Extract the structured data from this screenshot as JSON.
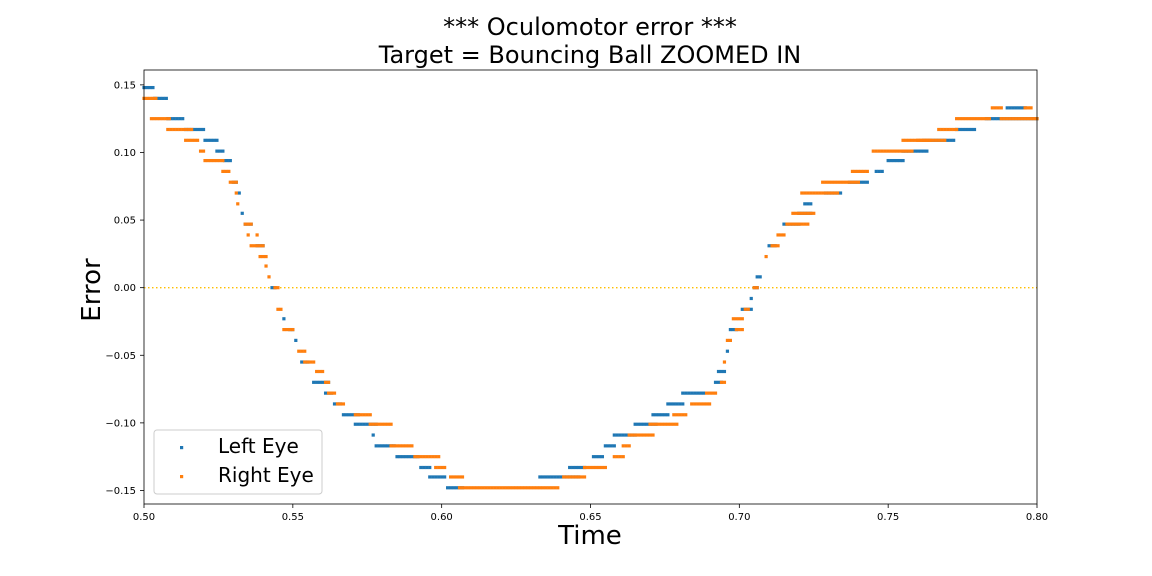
{
  "chart_data": {
    "type": "scatter",
    "title": "*** Oculomotor error ***",
    "subtitle": "Target = Bouncing Ball ZOOMED IN",
    "xlabel": "Time",
    "ylabel": "Error",
    "xlim": [
      0.5,
      0.8
    ],
    "ylim": [
      -0.16,
      0.161
    ],
    "xticks": [
      "0.50",
      "0.55",
      "0.60",
      "0.65",
      "0.70",
      "0.75",
      "0.80"
    ],
    "yticks": [
      "0.15",
      "0.10",
      "0.05",
      "0.00",
      "−0.05",
      "−0.10",
      "−0.15"
    ],
    "reference_line": {
      "y": 0.0,
      "style": "dotted",
      "color": "#ffbf00"
    },
    "legend": {
      "position": "lower-left"
    },
    "series": [
      {
        "name": "Left Eye",
        "color": "#1f77b4",
        "segments": [
          {
            "x": [
              0.5,
              0.503
            ],
            "y": 0.148
          },
          {
            "x": [
              0.5035,
              0.5075
            ],
            "y": 0.14
          },
          {
            "x": [
              0.508,
              0.513
            ],
            "y": 0.125
          },
          {
            "x": [
              0.514,
              0.52
            ],
            "y": 0.117
          },
          {
            "x": [
              0.5205,
              0.524
            ],
            "y": 0.109
          },
          {
            "x": [
              0.5245,
              0.5265
            ],
            "y": 0.101
          },
          {
            "x": [
              0.527,
              0.529
            ],
            "y": 0.094
          },
          {
            "x": [
              0.53,
              0.531
            ],
            "y": 0.078
          },
          {
            "x": [
              0.532,
              0.532
            ],
            "y": 0.07
          },
          {
            "x": [
              0.533,
              0.533
            ],
            "y": 0.055
          },
          {
            "x": [
              0.534,
              0.536
            ],
            "y": 0.047
          },
          {
            "x": [
              0.538,
              0.54
            ],
            "y": 0.031
          },
          {
            "x": [
              0.543,
              0.544
            ],
            "y": 0.0
          },
          {
            "x": [
              0.547,
              0.547
            ],
            "y": -0.023
          },
          {
            "x": [
              0.549,
              0.55
            ],
            "y": -0.031
          },
          {
            "x": [
              0.551,
              0.551
            ],
            "y": -0.039
          },
          {
            "x": [
              0.553,
              0.555
            ],
            "y": -0.055
          },
          {
            "x": [
              0.557,
              0.562
            ],
            "y": -0.07
          },
          {
            "x": [
              0.561,
              0.563
            ],
            "y": -0.078
          },
          {
            "x": [
              0.564,
              0.566
            ],
            "y": -0.086
          },
          {
            "x": [
              0.567,
              0.572
            ],
            "y": -0.094
          },
          {
            "x": [
              0.571,
              0.578
            ],
            "y": -0.101
          },
          {
            "x": [
              0.577,
              0.577
            ],
            "y": -0.109
          },
          {
            "x": [
              0.578,
              0.584
            ],
            "y": -0.117
          },
          {
            "x": [
              0.585,
              0.592
            ],
            "y": -0.125
          },
          {
            "x": [
              0.593,
              0.596
            ],
            "y": -0.133
          },
          {
            "x": [
              0.596,
              0.601
            ],
            "y": -0.14
          },
          {
            "x": [
              0.602,
              0.607
            ],
            "y": -0.148
          },
          {
            "x": [
              0.633,
              0.646
            ],
            "y": -0.14
          },
          {
            "x": [
              0.643,
              0.648
            ],
            "y": -0.133
          },
          {
            "x": [
              0.651,
              0.654
            ],
            "y": -0.125
          },
          {
            "x": [
              0.655,
              0.658
            ],
            "y": -0.117
          },
          {
            "x": [
              0.658,
              0.665
            ],
            "y": -0.109
          },
          {
            "x": [
              0.665,
              0.672
            ],
            "y": -0.101
          },
          {
            "x": [
              0.671,
              0.676
            ],
            "y": -0.094
          },
          {
            "x": [
              0.676,
              0.681
            ],
            "y": -0.086
          },
          {
            "x": [
              0.681,
              0.688
            ],
            "y": -0.078
          },
          {
            "x": [
              0.692,
              0.694
            ],
            "y": -0.07
          },
          {
            "x": [
              0.693,
              0.695
            ],
            "y": -0.062
          },
          {
            "x": [
              0.696,
              0.696
            ],
            "y": -0.047
          },
          {
            "x": [
              0.697,
              0.699
            ],
            "y": -0.031
          },
          {
            "x": [
              0.701,
              0.704
            ],
            "y": -0.016
          },
          {
            "x": [
              0.704,
              0.704
            ],
            "y": -0.008
          },
          {
            "x": [
              0.705,
              0.706
            ],
            "y": 0.0
          },
          {
            "x": [
              0.706,
              0.707
            ],
            "y": 0.008
          },
          {
            "x": [
              0.71,
              0.712
            ],
            "y": 0.031
          },
          {
            "x": [
              0.715,
              0.72
            ],
            "y": 0.047
          },
          {
            "x": [
              0.72,
              0.724
            ],
            "y": 0.055
          },
          {
            "x": [
              0.722,
              0.724
            ],
            "y": 0.062
          },
          {
            "x": [
              0.729,
              0.734
            ],
            "y": 0.07
          },
          {
            "x": [
              0.737,
              0.743
            ],
            "y": 0.078
          },
          {
            "x": [
              0.746,
              0.748
            ],
            "y": 0.086
          },
          {
            "x": [
              0.75,
              0.755
            ],
            "y": 0.094
          },
          {
            "x": [
              0.755,
              0.763
            ],
            "y": 0.101
          },
          {
            "x": [
              0.762,
              0.772
            ],
            "y": 0.109
          },
          {
            "x": [
              0.773,
              0.779
            ],
            "y": 0.117
          },
          {
            "x": [
              0.783,
              0.8
            ],
            "y": 0.125
          },
          {
            "x": [
              0.79,
              0.796
            ],
            "y": 0.133
          }
        ]
      },
      {
        "name": "Right Eye",
        "color": "#ff7f0e",
        "segments": [
          {
            "x": [
              0.5,
              0.5045
            ],
            "y": 0.14
          },
          {
            "x": [
              0.5025,
              0.508
            ],
            "y": 0.125
          },
          {
            "x": [
              0.508,
              0.516
            ],
            "y": 0.117
          },
          {
            "x": [
              0.514,
              0.518
            ],
            "y": 0.109
          },
          {
            "x": [
              0.519,
              0.52
            ],
            "y": 0.101
          },
          {
            "x": [
              0.5205,
              0.5265
            ],
            "y": 0.094
          },
          {
            "x": [
              0.5265,
              0.528
            ],
            "y": 0.086
          },
          {
            "x": [
              0.529,
              0.531
            ],
            "y": 0.078
          },
          {
            "x": [
              0.531,
              0.531
            ],
            "y": 0.07
          },
          {
            "x": [
              0.5315,
              0.5315
            ],
            "y": 0.062
          },
          {
            "x": [
              0.534,
              0.536
            ],
            "y": 0.047
          },
          {
            "x": [
              0.535,
              0.535
            ],
            "y": 0.039
          },
          {
            "x": [
              0.536,
              0.54
            ],
            "y": 0.031
          },
          {
            "x": [
              0.538,
              0.538
            ],
            "y": 0.039
          },
          {
            "x": [
              0.539,
              0.541
            ],
            "y": 0.023
          },
          {
            "x": [
              0.541,
              0.541
            ],
            "y": 0.016
          },
          {
            "x": [
              0.542,
              0.542
            ],
            "y": 0.008
          },
          {
            "x": [
              0.544,
              0.545
            ],
            "y": 0.0
          },
          {
            "x": [
              0.545,
              0.546
            ],
            "y": -0.016
          },
          {
            "x": [
              0.547,
              0.55
            ],
            "y": -0.031
          },
          {
            "x": [
              0.552,
              0.554
            ],
            "y": -0.047
          },
          {
            "x": [
              0.554,
              0.557
            ],
            "y": -0.055
          },
          {
            "x": [
              0.558,
              0.56
            ],
            "y": -0.062
          },
          {
            "x": [
              0.561,
              0.562
            ],
            "y": -0.07
          },
          {
            "x": [
              0.562,
              0.564
            ],
            "y": -0.078
          },
          {
            "x": [
              0.565,
              0.567
            ],
            "y": -0.086
          },
          {
            "x": [
              0.571,
              0.576
            ],
            "y": -0.094
          },
          {
            "x": [
              0.576,
              0.583
            ],
            "y": -0.101
          },
          {
            "x": [
              0.583,
              0.59
            ],
            "y": -0.117
          },
          {
            "x": [
              0.591,
              0.599
            ],
            "y": -0.125
          },
          {
            "x": [
              0.598,
              0.601
            ],
            "y": -0.133
          },
          {
            "x": [
              0.603,
              0.607
            ],
            "y": -0.14
          },
          {
            "x": [
              0.606,
              0.639
            ],
            "y": -0.148
          },
          {
            "x": [
              0.641,
              0.648
            ],
            "y": -0.14
          },
          {
            "x": [
              0.648,
              0.655
            ],
            "y": -0.133
          },
          {
            "x": [
              0.658,
              0.661
            ],
            "y": -0.125
          },
          {
            "x": [
              0.661,
              0.663
            ],
            "y": -0.117
          },
          {
            "x": [
              0.663,
              0.671
            ],
            "y": -0.109
          },
          {
            "x": [
              0.67,
              0.679
            ],
            "y": -0.101
          },
          {
            "x": [
              0.678,
              0.682
            ],
            "y": -0.094
          },
          {
            "x": [
              0.684,
              0.69
            ],
            "y": -0.086
          },
          {
            "x": [
              0.689,
              0.692
            ],
            "y": -0.078
          },
          {
            "x": [
              0.694,
              0.695
            ],
            "y": -0.07
          },
          {
            "x": [
              0.695,
              0.695
            ],
            "y": -0.055
          },
          {
            "x": [
              0.696,
              0.697
            ],
            "y": -0.039
          },
          {
            "x": [
              0.699,
              0.701
            ],
            "y": -0.031
          },
          {
            "x": [
              0.698,
              0.701
            ],
            "y": -0.023
          },
          {
            "x": [
              0.702,
              0.703
            ],
            "y": -0.016
          },
          {
            "x": [
              0.705,
              0.706
            ],
            "y": 0.0
          },
          {
            "x": [
              0.709,
              0.709
            ],
            "y": 0.023
          },
          {
            "x": [
              0.711,
              0.713
            ],
            "y": 0.031
          },
          {
            "x": [
              0.713,
              0.715
            ],
            "y": 0.039
          },
          {
            "x": [
              0.716,
              0.723
            ],
            "y": 0.047
          },
          {
            "x": [
              0.718,
              0.725
            ],
            "y": 0.055
          },
          {
            "x": [
              0.721,
              0.733
            ],
            "y": 0.07
          },
          {
            "x": [
              0.728,
              0.74
            ],
            "y": 0.078
          },
          {
            "x": [
              0.738,
              0.743
            ],
            "y": 0.086
          },
          {
            "x": [
              0.745,
              0.758
            ],
            "y": 0.101
          },
          {
            "x": [
              0.755,
              0.764
            ],
            "y": 0.109
          },
          {
            "x": [
              0.76,
              0.769
            ],
            "y": 0.109
          },
          {
            "x": [
              0.767,
              0.773
            ],
            "y": 0.117
          },
          {
            "x": [
              0.773,
              0.784
            ],
            "y": 0.125
          },
          {
            "x": [
              0.785,
              0.788
            ],
            "y": 0.133
          },
          {
            "x": [
              0.788,
              0.8
            ],
            "y": 0.125
          },
          {
            "x": [
              0.796,
              0.798
            ],
            "y": 0.133
          }
        ]
      }
    ]
  }
}
